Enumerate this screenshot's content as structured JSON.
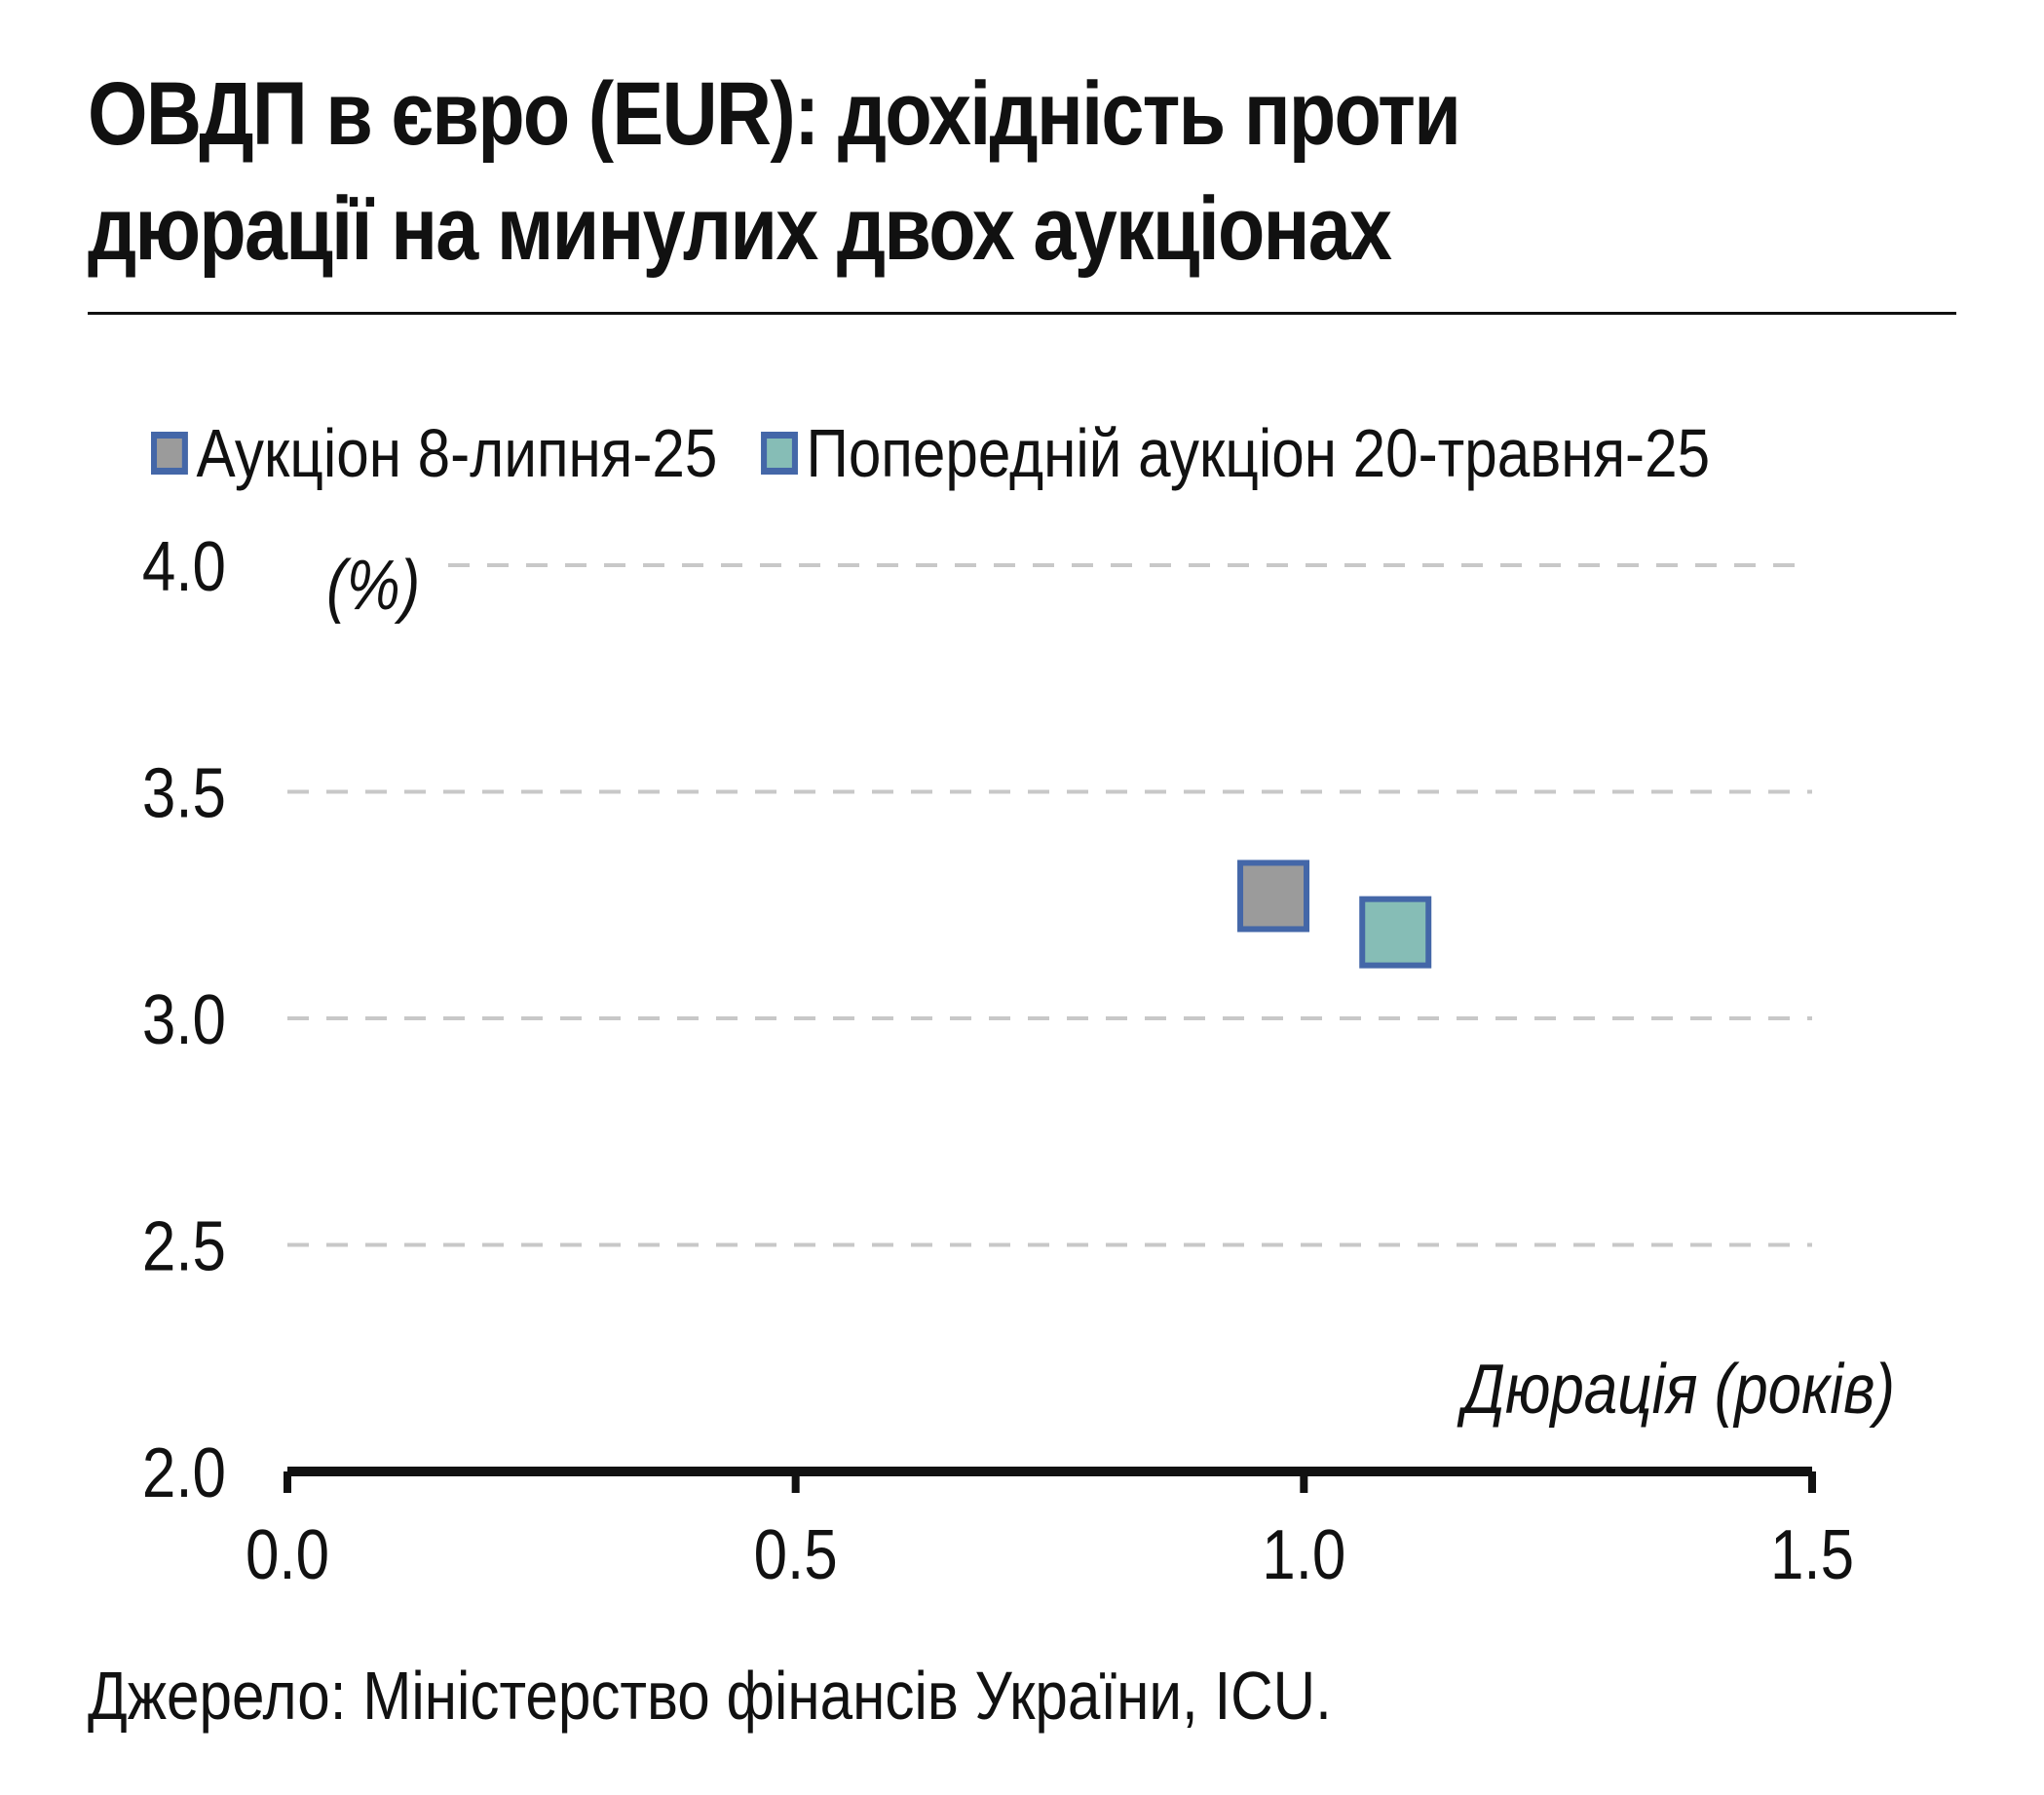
{
  "title": "ОВДП в євро (EUR): дохідність проти дюрації на минулих двох аукціонах",
  "source": "Джерело: Міністерство фінансів України, ICU.",
  "colors": {
    "marker_border": "#4467a8",
    "series1_fill": "#9b9b9b",
    "series2_fill": "#86bdb6",
    "grid": "#c8c8c8",
    "axis": "#111111"
  },
  "chart_data": {
    "type": "scatter",
    "xlabel": "Дюрація (років)",
    "ylabel": "(%)",
    "xlim": [
      0.0,
      1.5
    ],
    "ylim": [
      2.0,
      4.0
    ],
    "x_ticks": [
      "0.0",
      "0.5",
      "1.0",
      "1.5"
    ],
    "y_ticks": [
      "2.0",
      "2.5",
      "3.0",
      "3.5",
      "4.0"
    ],
    "grid": true,
    "legend_position": "top",
    "series": [
      {
        "name": "Аукціон 8-липня-25",
        "points": [
          {
            "x": 0.97,
            "y": 3.27
          }
        ]
      },
      {
        "name": "Попередній аукціон 20-травня-25",
        "points": [
          {
            "x": 1.09,
            "y": 3.19
          }
        ]
      }
    ]
  }
}
